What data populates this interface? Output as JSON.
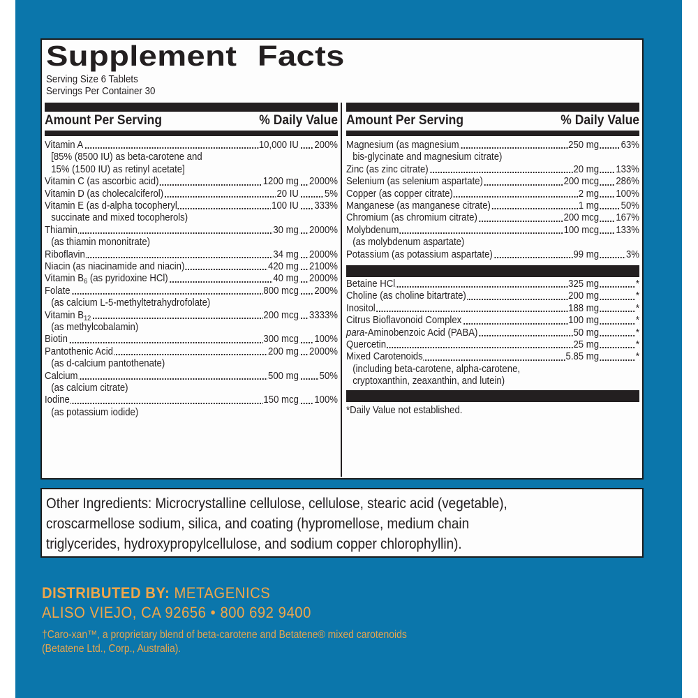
{
  "title": "Supplement Facts",
  "serving_size": "Serving Size 6 Tablets",
  "servings_per_container": "Servings Per Container 30",
  "header": {
    "amount": "Amount Per Serving",
    "dv": "% Daily Value"
  },
  "left_rows": [
    {
      "name": "Vitamin A",
      "amount": "10,000 IU",
      "dv": "200%",
      "subs": [
        "[85% (8500 IU) as beta-carotene and",
        "15% (1500 IU) as retinyl acetate]"
      ]
    },
    {
      "name": "Vitamin C (as ascorbic acid)",
      "amount": "1200 mg",
      "dv": "2000%",
      "subs": []
    },
    {
      "name": "Vitamin D (as cholecalciferol)",
      "amount": "20 IU",
      "dv": "5%",
      "subs": []
    },
    {
      "name": "Vitamin E (as d-alpha tocopheryl",
      "amount": "100 IU",
      "dv": "333%",
      "subs": [
        "succinate and mixed tocopherols)"
      ]
    },
    {
      "name": "Thiamin",
      "amount": "30 mg",
      "dv": "2000%",
      "subs": [
        "(as thiamin mononitrate)"
      ]
    },
    {
      "name": "Riboflavin",
      "amount": "34 mg",
      "dv": "2000%",
      "subs": []
    },
    {
      "name": "Niacin (as niacinamide and niacin)",
      "amount": "420 mg",
      "dv": "2100%",
      "subs": []
    },
    {
      "name": "Vitamin B6 (as pyridoxine HCl)",
      "amount": "40 mg",
      "dv": "2000%",
      "subs": []
    },
    {
      "name": "Folate",
      "amount": "800 mcg",
      "dv": "200%",
      "subs": [
        "(as calcium L-5-methyltetrahydrofolate)"
      ]
    },
    {
      "name": "Vitamin B12",
      "amount": "200 mcg",
      "dv": "3333%",
      "subs": [
        "(as methylcobalamin)"
      ]
    },
    {
      "name": "Biotin",
      "amount": "300 mcg",
      "dv": "100%",
      "subs": []
    },
    {
      "name": "Pantothenic Acid",
      "amount": "200 mg",
      "dv": "2000%",
      "subs": [
        "(as d-calcium pantothenate)"
      ]
    },
    {
      "name": "Calcium",
      "amount": "500 mg",
      "dv": "50%",
      "subs": [
        "(as calcium citrate)"
      ]
    },
    {
      "name": "Iodine",
      "amount": "150 mcg",
      "dv": "100%",
      "subs": [
        "(as potassium iodide)"
      ]
    }
  ],
  "right_rows": [
    {
      "name": "Magnesium (as magnesium",
      "amount": "250 mg",
      "dv": "63%",
      "subs": [
        "bis-glycinate and magnesium citrate)"
      ]
    },
    {
      "name": "Zinc (as zinc citrate)",
      "amount": "20 mg",
      "dv": "133%",
      "subs": []
    },
    {
      "name": "Selenium (as selenium aspartate)",
      "amount": "200 mcg",
      "dv": "286%",
      "subs": []
    },
    {
      "name": "Copper (as copper citrate)",
      "amount": "2 mg",
      "dv": "100%",
      "subs": []
    },
    {
      "name": "Manganese (as manganese citrate)",
      "amount": "1 mg",
      "dv": "50%",
      "subs": []
    },
    {
      "name": "Chromium (as chromium citrate)",
      "amount": "200 mcg",
      "dv": "167%",
      "subs": []
    },
    {
      "name": "Molybdenum",
      "amount": "100 mcg",
      "dv": "133%",
      "subs": [
        "(as molybdenum aspartate)"
      ]
    },
    {
      "name": "Potassium (as potassium aspartate)",
      "amount": "99 mg",
      "dv": "3%",
      "subs": []
    }
  ],
  "right_rows_2": [
    {
      "name": "Betaine HCl",
      "amount": "325 mg",
      "dv": "*",
      "subs": []
    },
    {
      "name": "Choline (as choline bitartrate)",
      "amount": "200 mg",
      "dv": "*",
      "subs": []
    },
    {
      "name": "Inositol",
      "amount": "188 mg",
      "dv": "*",
      "subs": []
    },
    {
      "name": "Citrus Bioflavonoid Complex",
      "amount": "100 mg",
      "dv": "*",
      "subs": []
    },
    {
      "name": "para-Aminobenzoic Acid (PABA)",
      "amount": "50 mg",
      "dv": "*",
      "subs": []
    },
    {
      "name": "Quercetin",
      "amount": "25 mg",
      "dv": "*",
      "subs": []
    },
    {
      "name": "Mixed Carotenoids",
      "amount": "5.85 mg",
      "dv": "*",
      "subs": [
        "(including beta-carotene, alpha-carotene,",
        "cryptoxanthin, zeaxanthin, and lutein)"
      ]
    }
  ],
  "dv_note": "*Daily Value not established.",
  "other_ingredients": [
    "Other Ingredients: Microcrystalline cellulose, cellulose, stearic acid (vegetable),",
    "croscarmellose sodium, silica, and coating (hypromellose, medium chain",
    "triglycerides, hydroxypropylcellulose, and sodium copper chlorophyllin)."
  ],
  "distributor": {
    "label": "DISTRIBUTED BY:",
    "name": "METAGENICS",
    "address": "ALISO VIEJO, CA 92656 • 800 692 9400"
  },
  "footnote": {
    "line1": "†Caro-xan™, a proprietary blend of beta-carotene and Betatene® mixed carotenoids",
    "line2": "(Betatene Ltd., Corp., Australia)."
  },
  "colors": {
    "panel_blue": "#0b76ab",
    "accent_orange": "#f0a64a",
    "ink": "#231f20"
  }
}
